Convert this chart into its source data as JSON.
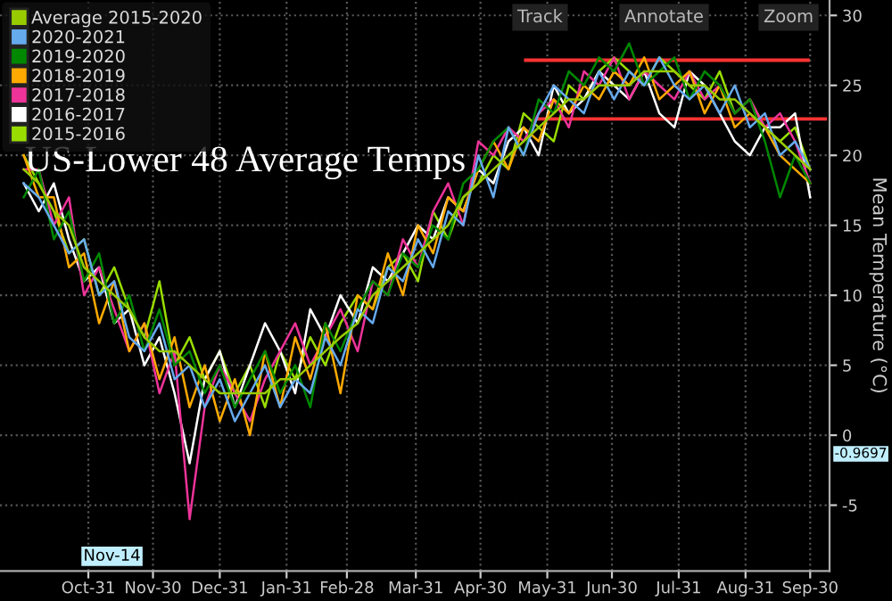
{
  "chart_data": {
    "type": "line",
    "title": "US-Lower 48 Average Temps",
    "ylabel": "Mean Temperature (°C)",
    "x": [
      "2019-10-01",
      "2019-10-08",
      "2019-10-15",
      "2019-10-22",
      "2019-10-29",
      "2019-11-05",
      "2019-11-12",
      "2019-11-19",
      "2019-11-26",
      "2019-12-03",
      "2019-12-10",
      "2019-12-17",
      "2019-12-24",
      "2019-12-31",
      "2020-01-07",
      "2020-01-14",
      "2020-01-21",
      "2020-01-28",
      "2020-02-04",
      "2020-02-11",
      "2020-02-18",
      "2020-02-25",
      "2020-03-04",
      "2020-03-11",
      "2020-03-18",
      "2020-03-25",
      "2020-04-01",
      "2020-04-08",
      "2020-04-15",
      "2020-04-22",
      "2020-04-29",
      "2020-05-06",
      "2020-05-13",
      "2020-05-20",
      "2020-05-27",
      "2020-06-03",
      "2020-06-10",
      "2020-06-17",
      "2020-06-24",
      "2020-07-01",
      "2020-07-08",
      "2020-07-15",
      "2020-07-22",
      "2020-07-29",
      "2020-08-05",
      "2020-08-12",
      "2020-08-19",
      "2020-08-26",
      "2020-09-02",
      "2020-09-09",
      "2020-09-16",
      "2020-09-23",
      "2020-09-30"
    ],
    "series": [
      {
        "name": "Average 2015-2020",
        "color": "#99cc00",
        "values": [
          19,
          18,
          16,
          15,
          12,
          11,
          10,
          9,
          7,
          6,
          6,
          5,
          4,
          3,
          3,
          3,
          3,
          4,
          4,
          5,
          6,
          7,
          8,
          10,
          11,
          12,
          13,
          14,
          15,
          17,
          18,
          19,
          20,
          21,
          22,
          23,
          24,
          24,
          25,
          25,
          25,
          26,
          26,
          26,
          25,
          25,
          24,
          24,
          23,
          22,
          21,
          20,
          19
        ]
      },
      {
        "name": "2020-2021",
        "color": "#66aaee",
        "values": [
          18,
          17,
          15,
          13,
          14,
          10,
          11,
          7,
          6,
          8,
          4,
          5,
          2,
          4,
          1,
          3,
          5,
          2,
          4,
          3,
          7,
          5,
          9,
          8,
          12,
          11,
          14,
          12,
          16,
          15,
          20,
          17,
          22,
          20,
          23,
          25,
          24,
          23,
          26,
          24,
          26,
          25,
          27,
          25,
          24,
          25,
          23,
          25,
          22,
          23,
          20,
          21,
          19
        ]
      },
      {
        "name": "2019-2020",
        "color": "#008800",
        "values": [
          17,
          19,
          14,
          16,
          11,
          13,
          8,
          10,
          6,
          9,
          5,
          6,
          3,
          5,
          2,
          4,
          6,
          3,
          5,
          2,
          8,
          6,
          9,
          11,
          10,
          13,
          12,
          15,
          14,
          18,
          19,
          21,
          22,
          20,
          24,
          23,
          26,
          25,
          27,
          26,
          28,
          25,
          26,
          27,
          24,
          26,
          25,
          23,
          24,
          21,
          17,
          20,
          18
        ]
      },
      {
        "name": "2018-2019",
        "color": "#ffaa00",
        "values": [
          20,
          17,
          17,
          12,
          13,
          8,
          11,
          6,
          8,
          4,
          7,
          2,
          5,
          1,
          4,
          0,
          6,
          2,
          7,
          4,
          8,
          3,
          10,
          9,
          13,
          10,
          15,
          13,
          17,
          16,
          19,
          21,
          19,
          22,
          21,
          24,
          23,
          25,
          24,
          26,
          25,
          27,
          24,
          25,
          26,
          23,
          25,
          22,
          23,
          22,
          20,
          19,
          18
        ]
      },
      {
        "name": "2017-2018",
        "color": "#ee3399",
        "values": [
          19,
          19,
          15,
          17,
          10,
          12,
          9,
          6,
          8,
          3,
          6,
          -6,
          2,
          5,
          3,
          1,
          4,
          6,
          8,
          5,
          7,
          9,
          6,
          11,
          10,
          14,
          12,
          16,
          18,
          15,
          21,
          20,
          22,
          21,
          23,
          24,
          22,
          26,
          25,
          27,
          24,
          26,
          25,
          24,
          26,
          24,
          25,
          23,
          24,
          22,
          23,
          21,
          18
        ]
      },
      {
        "name": "2016-2017",
        "color": "#ffffff",
        "values": [
          18,
          16,
          18,
          14,
          11,
          12,
          8,
          9,
          5,
          7,
          3,
          -2,
          4,
          6,
          2,
          5,
          8,
          6,
          3,
          9,
          7,
          10,
          8,
          12,
          11,
          13,
          15,
          14,
          17,
          16,
          19,
          18,
          21,
          22,
          20,
          25,
          23,
          24,
          26,
          25,
          24,
          26,
          23,
          22,
          26,
          25,
          23,
          21,
          20,
          22,
          22,
          23,
          17
        ]
      },
      {
        "name": "2015-2016",
        "color": "#99dd00",
        "values": [
          20,
          18,
          16,
          13,
          14,
          10,
          12,
          9,
          7,
          11,
          5,
          7,
          4,
          6,
          3,
          5,
          2,
          6,
          4,
          7,
          5,
          8,
          10,
          9,
          12,
          13,
          11,
          16,
          14,
          17,
          18,
          20,
          19,
          23,
          22,
          21,
          25,
          24,
          26,
          27,
          26,
          25,
          27,
          26,
          25,
          24,
          26,
          23,
          24,
          22,
          21,
          22,
          19
        ]
      },
      {
        "type": "line",
        "color": "#ff3333",
        "x": [
          "2020-05-21",
          "2020-09-29"
        ],
        "values": [
          26.8,
          26.8
        ]
      },
      {
        "type": "line",
        "color": "#ff3333",
        "x": [
          "2020-05-27",
          "2020-10-07"
        ],
        "values": [
          22.6,
          22.6
        ]
      }
    ],
    "xlim": [
      "2019-09-20",
      "2020-10-09"
    ],
    "ylim": [
      -9.7,
      31.1
    ],
    "xticks": [
      {
        "value": "2019-10-31",
        "label": "Oct-31"
      },
      {
        "value": "2019-11-30",
        "label": "Nov-30"
      },
      {
        "value": "2019-12-31",
        "label": "Dec-31"
      },
      {
        "value": "2020-01-31",
        "label": "Jan-31"
      },
      {
        "value": "2020-02-28",
        "label": "Feb-28"
      },
      {
        "value": "2020-03-31",
        "label": "Mar-31"
      },
      {
        "value": "2020-04-30",
        "label": "Apr-30"
      },
      {
        "value": "2020-05-31",
        "label": "May-31"
      },
      {
        "value": "2020-06-30",
        "label": "Jun-30"
      },
      {
        "value": "2020-07-31",
        "label": "Jul-31"
      },
      {
        "value": "2020-08-31",
        "label": "Aug-31"
      },
      {
        "value": "2020-09-30",
        "label": "Sep-30"
      }
    ],
    "yticks": [
      -5,
      0,
      5,
      10,
      15,
      20,
      25,
      30
    ],
    "grid": true,
    "legend": "top left",
    "annotations": [
      "Nov-14",
      "-0.9697",
      "Track",
      "Annotate",
      "Zoom"
    ]
  }
}
